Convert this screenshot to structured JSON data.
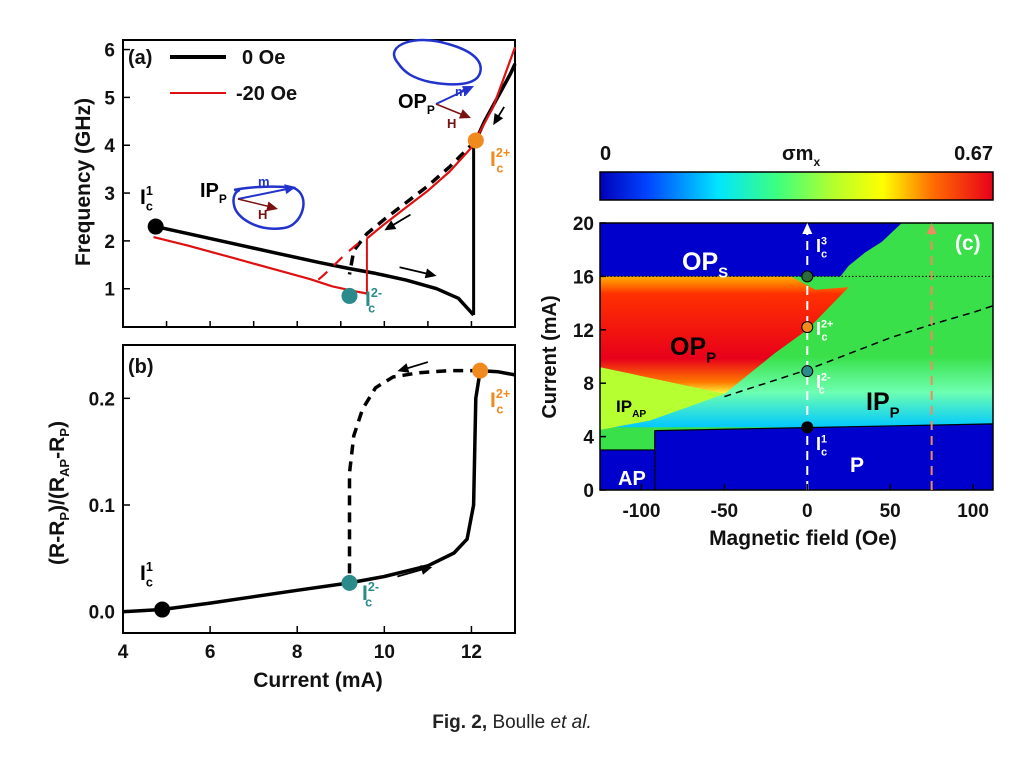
{
  "figure_caption": {
    "lead": "Fig. 2,",
    "author": "Boulle",
    "etal": "et al."
  },
  "chart_data": [
    {
      "panel": "(a)",
      "type": "line",
      "xlim": [
        4,
        13
      ],
      "ylim": [
        0.2,
        6.2
      ],
      "xlabel": "",
      "ylabel": "Frequency (GHz)",
      "yticks": [
        1,
        2,
        3,
        4,
        5,
        6
      ],
      "legend": [
        {
          "label": "0 Oe",
          "color": "#000000"
        },
        {
          "label": "-20 Oe",
          "color": "#dd1111"
        }
      ],
      "series": [
        {
          "name": "0 Oe IP branch (solid)",
          "color": "#000000",
          "style": "solid",
          "x": [
            4.75,
            5.5,
            6.5,
            7.5,
            8.5,
            9.2,
            9.8,
            10.5,
            11.2,
            11.7,
            12.05
          ],
          "y": [
            2.3,
            2.15,
            1.95,
            1.75,
            1.55,
            1.42,
            1.32,
            1.18,
            1.0,
            0.8,
            0.45
          ]
        },
        {
          "name": "0 Oe OP branch (solid)",
          "color": "#000000",
          "style": "solid",
          "x": [
            12.1,
            12.3,
            12.6,
            12.9,
            13.0
          ],
          "y": [
            4.1,
            4.5,
            5.0,
            5.5,
            5.7
          ]
        },
        {
          "name": "0 Oe decreasing current (dashed)",
          "color": "#000000",
          "style": "dashed",
          "x": [
            12.1,
            11.5,
            11.0,
            10.5,
            10.0,
            9.6,
            9.3,
            9.2
          ],
          "y": [
            4.1,
            3.55,
            3.15,
            2.8,
            2.45,
            2.15,
            1.8,
            1.3
          ]
        },
        {
          "name": "-20 Oe IP branch (solid)",
          "color": "#dd1111",
          "style": "solid",
          "x": [
            4.7,
            5.5,
            6.5,
            7.5,
            8.3,
            8.8,
            9.3,
            9.6
          ],
          "y": [
            2.08,
            1.9,
            1.65,
            1.4,
            1.2,
            1.05,
            0.95,
            0.9
          ]
        },
        {
          "name": "-20 Oe OP branch (solid)",
          "color": "#dd1111",
          "style": "solid",
          "x": [
            9.6,
            10.0,
            10.5,
            11.0,
            11.5,
            12.0,
            12.5,
            13.0
          ],
          "y": [
            2.05,
            2.35,
            2.7,
            3.05,
            3.45,
            3.95,
            4.8,
            6.05
          ]
        },
        {
          "name": "-20 Oe decreasing current (dashed)",
          "color": "#dd1111",
          "style": "dashed",
          "x": [
            9.4,
            9.1,
            8.8,
            8.6,
            8.4
          ],
          "y": [
            1.95,
            1.72,
            1.45,
            1.28,
            1.12
          ]
        }
      ],
      "markers": [
        {
          "label": "I",
          "sup": "1",
          "sub": "c",
          "x": 4.75,
          "y": 2.3,
          "color": "#000000"
        },
        {
          "label": "I",
          "sup": "2-",
          "sub": "c",
          "x": 9.2,
          "y": 0.85,
          "color": "#2b8a8a"
        },
        {
          "label": "I",
          "sup": "2+",
          "sub": "c",
          "x": 12.1,
          "y": 4.1,
          "color": "#f08a1e"
        }
      ],
      "annotations": [
        {
          "text": "OP",
          "sub": "P"
        },
        {
          "text": "IP",
          "sub": "P"
        },
        {
          "text": "m"
        },
        {
          "text": "H"
        }
      ]
    },
    {
      "panel": "(b)",
      "type": "line",
      "xlim": [
        4,
        13
      ],
      "ylim": [
        -0.02,
        0.25
      ],
      "xlabel": "Current (mA)",
      "ylabel": "(R-R_P)/(R_AP-R_P)",
      "xticks": [
        4,
        6,
        8,
        10,
        12
      ],
      "yticks": [
        0.0,
        0.1,
        0.2
      ],
      "ytick_labels": [
        "0.0",
        "0.1",
        "0.2"
      ],
      "series": [
        {
          "name": "increasing current (solid)",
          "color": "#000000",
          "style": "solid",
          "x": [
            4.0,
            4.9,
            6.0,
            7.0,
            8.0,
            9.2,
            10.0,
            11.0,
            11.6,
            11.9,
            12.05,
            12.1,
            12.2
          ],
          "y": [
            0.0,
            0.002,
            0.008,
            0.014,
            0.02,
            0.027,
            0.033,
            0.043,
            0.055,
            0.068,
            0.1,
            0.2,
            0.226
          ]
        },
        {
          "name": "high-current state (solid)",
          "color": "#000000",
          "style": "solid",
          "x": [
            12.2,
            12.6,
            13.0
          ],
          "y": [
            0.226,
            0.225,
            0.222
          ]
        },
        {
          "name": "decreasing current (dashed)",
          "color": "#000000",
          "style": "dashed",
          "x": [
            12.2,
            11.5,
            10.8,
            10.2,
            9.8,
            9.5,
            9.3,
            9.2,
            9.2
          ],
          "y": [
            0.226,
            0.226,
            0.224,
            0.22,
            0.21,
            0.19,
            0.165,
            0.13,
            0.027
          ]
        }
      ],
      "markers": [
        {
          "label": "I",
          "sup": "1",
          "sub": "c",
          "x": 4.9,
          "y": 0.002,
          "color": "#000000"
        },
        {
          "label": "I",
          "sup": "2-",
          "sub": "c",
          "x": 9.2,
          "y": 0.027,
          "color": "#2b8a8a"
        },
        {
          "label": "I",
          "sup": "2+",
          "sub": "c",
          "x": 12.2,
          "y": 0.226,
          "color": "#f08a1e"
        }
      ]
    },
    {
      "panel": "(c)",
      "type": "heatmap",
      "title": "σm_x",
      "colorbar": {
        "min_label": "0",
        "max_label": "0.67",
        "quantity": "σm",
        "sub": "x"
      },
      "xlim": [
        -125,
        112
      ],
      "ylim": [
        0,
        20
      ],
      "xlabel": "Magnetic field (Oe)",
      "ylabel": "Current  (mA)",
      "xticks": [
        -100,
        -50,
        0,
        50,
        100
      ],
      "yticks": [
        0,
        4,
        8,
        12,
        16,
        20
      ],
      "regions": [
        {
          "label": "OP",
          "sub": "S"
        },
        {
          "label": "OP",
          "sub": "P"
        },
        {
          "label": "IP",
          "sub": "AP"
        },
        {
          "label": "IP",
          "sub": "P"
        },
        {
          "label": "AP",
          "sub": ""
        },
        {
          "label": "P",
          "sub": ""
        }
      ],
      "markers": [
        {
          "label": "I",
          "sup": "3",
          "sub": "c",
          "x": 0,
          "y": 16,
          "color": "#2e6b3a"
        },
        {
          "label": "I",
          "sup": "2+",
          "sub": "c",
          "x": 0,
          "y": 12.2,
          "color": "#f08a1e"
        },
        {
          "label": "I",
          "sup": "2-",
          "sub": "c",
          "x": 0,
          "y": 8.9,
          "color": "#2b8a8a"
        },
        {
          "label": "I",
          "sup": "1",
          "sub": "c",
          "x": 0,
          "y": 4.7,
          "color": "#000000"
        }
      ],
      "sweep_lines": [
        {
          "field": 0,
          "color": "#ffffff"
        },
        {
          "field": 75,
          "color": "#f08a60"
        }
      ],
      "boundaries": {
        "dotted_current": 16,
        "ip_p_lower": {
          "x": [
            -92,
            112
          ],
          "y": [
            4.45,
            4.95
          ]
        },
        "dashed": {
          "x": [
            -50,
            -25,
            0,
            25,
            50,
            75,
            100,
            112
          ],
          "y": [
            7.0,
            8.0,
            9.0,
            10.2,
            11.4,
            12.4,
            13.3,
            13.8
          ]
        }
      }
    }
  ]
}
